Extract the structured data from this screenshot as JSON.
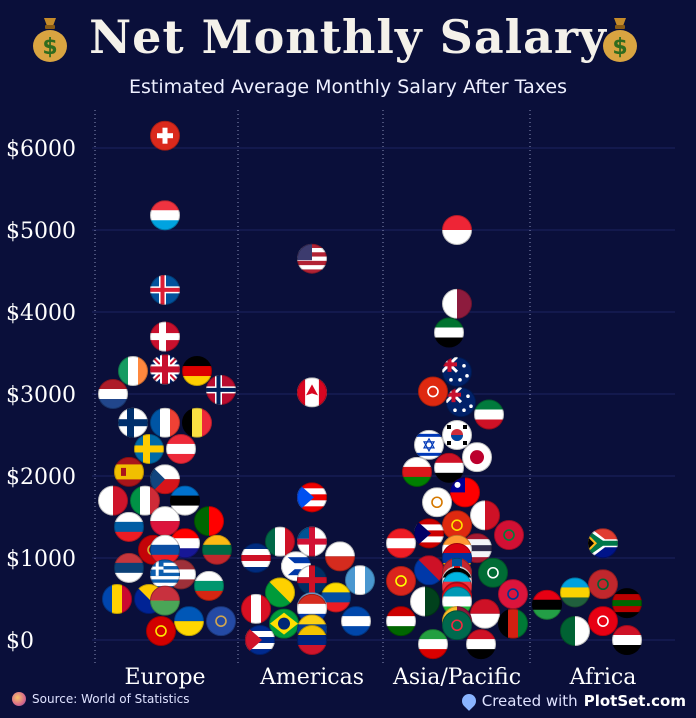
{
  "header": {
    "title": "Net Monthly Salary",
    "subtitle": "Estimated Average Monthly Salary After Taxes",
    "icon_left": "money-bag-icon",
    "icon_right": "money-bag-icon"
  },
  "footer": {
    "source": "Source: World of Statistics",
    "made_prefix": "Created with",
    "made_brand": "PlotSet.com"
  },
  "chart_data": {
    "type": "scatter",
    "title": "Net Monthly Salary",
    "subtitle": "Estimated Average Monthly Salary After Taxes",
    "categories": [
      "Europe",
      "Americas",
      "Asia/Pacific",
      "Africa"
    ],
    "yticks": [
      0,
      1000,
      2000,
      3000,
      4000,
      5000,
      6000
    ],
    "ytick_labels": [
      "$0",
      "$1000",
      "$2000",
      "$3000",
      "$4000",
      "$5000",
      "$6000"
    ],
    "ylim": [
      -200,
      6400
    ],
    "grid": true,
    "points": [
      {
        "group": "Europe",
        "country": "Switzerland",
        "value": 6150,
        "flag": "swiss"
      },
      {
        "group": "Europe",
        "country": "Luxembourg",
        "value": 5180,
        "flag": "h3:#ef3340,#ffffff,#00a3e0"
      },
      {
        "group": "Europe",
        "country": "Iceland",
        "value": 4270,
        "flag": "nordic:#02529c,#ffffff,#dc1e35"
      },
      {
        "group": "Europe",
        "country": "Denmark",
        "value": 3700,
        "flag": "nordic:#c8102e,#c8102e,#ffffff"
      },
      {
        "group": "Europe",
        "country": "Ireland",
        "value": 3280,
        "flag": "v3:#169b62,#ffffff,#ff883e"
      },
      {
        "group": "Europe",
        "country": "Germany",
        "value": 3280,
        "flag": "h3:#000000,#dd0000,#ffce00"
      },
      {
        "group": "Europe",
        "country": "Norway",
        "value": 3050,
        "flag": "nordic:#ba0c2f,#ffffff,#00205b"
      },
      {
        "group": "Europe",
        "country": "United Kingdom",
        "value": 3300,
        "flag": "uk"
      },
      {
        "group": "Europe",
        "country": "Netherlands",
        "value": 3000,
        "flag": "h3:#ae1c28,#ffffff,#21468b"
      },
      {
        "group": "Europe",
        "country": "France",
        "value": 2650,
        "flag": "v3:#0055a4,#ffffff,#ef4135"
      },
      {
        "group": "Europe",
        "country": "Finland",
        "value": 2650,
        "flag": "nordic:#ffffff,#ffffff,#002f6c"
      },
      {
        "group": "Europe",
        "country": "Belgium",
        "value": 2650,
        "flag": "v3:#000000,#fae042,#ed2939"
      },
      {
        "group": "Europe",
        "country": "Sweden",
        "value": 2330,
        "flag": "nordic:#006aa7,#006aa7,#fecc00"
      },
      {
        "group": "Europe",
        "country": "Austria",
        "value": 2330,
        "flag": "h3:#ed2939,#ffffff,#ed2939"
      },
      {
        "group": "Europe",
        "country": "Spain",
        "value": 2050,
        "flag": "spain"
      },
      {
        "group": "Europe",
        "country": "Czech Republic",
        "value": 1960,
        "flag": "czech"
      },
      {
        "group": "Europe",
        "country": "Italy",
        "value": 1700,
        "flag": "v3:#009246,#ffffff,#ce2b37"
      },
      {
        "group": "Europe",
        "country": "Estonia",
        "value": 1700,
        "flag": "h3:#0072ce,#000000,#ffffff"
      },
      {
        "group": "Europe",
        "country": "Malta",
        "value": 1700,
        "flag": "v2:#ffffff,#cf142b"
      },
      {
        "group": "Europe",
        "country": "Portugal",
        "value": 1450,
        "flag": "v2:#006600,#ff0000"
      },
      {
        "group": "Europe",
        "country": "Poland",
        "value": 1450,
        "flag": "h2:#ffffff,#dc143c"
      },
      {
        "group": "Europe",
        "country": "Slovenia",
        "value": 1380,
        "flag": "h3:#ffffff,#005da4,#ed1c24"
      },
      {
        "group": "Europe",
        "country": "Croatia",
        "value": 1180,
        "flag": "h3:#ff0000,#ffffff,#171796"
      },
      {
        "group": "Europe",
        "country": "Montenegro",
        "value": 1100,
        "flag": "solid:#c40308,#d4af37"
      },
      {
        "group": "Europe",
        "country": "Lithuania",
        "value": 1100,
        "flag": "h3:#fdb913,#006a44,#c1272d"
      },
      {
        "group": "Europe",
        "country": "Romania",
        "value": 1100,
        "flag": "v3:#002b7f,#fcd116,#ce1126"
      },
      {
        "group": "Europe",
        "country": "Slovakia",
        "value": 1100,
        "flag": "h3:#ffffff,#0b4ea2,#ee1c25"
      },
      {
        "group": "Europe",
        "country": "Serbia",
        "value": 880,
        "flag": "h3:#c6363c,#0c4076,#ffffff"
      },
      {
        "group": "Europe",
        "country": "Latvia",
        "value": 800,
        "flag": "h3:#9e3039,#ffffff,#9e3039"
      },
      {
        "group": "Europe",
        "country": "Albania",
        "value": 800,
        "flag": "solid:#e41e20,#000000"
      },
      {
        "group": "Europe",
        "country": "Greece",
        "value": 800,
        "flag": "greece"
      },
      {
        "group": "Europe",
        "country": "Bulgaria",
        "value": 660,
        "flag": "h3:#ffffff,#00966e,#d62612"
      },
      {
        "group": "Europe",
        "country": "Bosnia",
        "value": 500,
        "flag": "diag:#002395,#fecb00"
      },
      {
        "group": "Europe",
        "country": "Moldova",
        "value": 500,
        "flag": "v3:#0046ae,#ffd200,#cc092f"
      },
      {
        "group": "Europe",
        "country": "Belarus",
        "value": 480,
        "flag": "h2:#c8313e,#4aa657"
      },
      {
        "group": "Europe",
        "country": "Ukraine",
        "value": 230,
        "flag": "h2:#0057b7,#ffd700"
      },
      {
        "group": "Europe",
        "country": "Kosovo",
        "value": 230,
        "flag": "solid:#244aa5,#d0a650"
      },
      {
        "group": "Europe",
        "country": "North Macedonia",
        "value": 110,
        "flag": "solid:#d20000,#ffe600"
      },
      {
        "group": "Americas",
        "country": "United States",
        "value": 4650,
        "flag": "usa"
      },
      {
        "group": "Americas",
        "country": "Canada",
        "value": 3020,
        "flag": "canada"
      },
      {
        "group": "Americas",
        "country": "Puerto Rico",
        "value": 1740,
        "flag": "stripes:#ed0000,#ffffff,#0050f0"
      },
      {
        "group": "Americas",
        "country": "Panama",
        "value": 1200,
        "flag": "quad:#ffffff,#d21034,#005293"
      },
      {
        "group": "Americas",
        "country": "Mexico",
        "value": 1200,
        "flag": "v3:#006847,#ffffff,#ce1126"
      },
      {
        "group": "Americas",
        "country": "Chile",
        "value": 1020,
        "flag": "h2:#ffffff,#d52b1e"
      },
      {
        "group": "Americas",
        "country": "Costa Rica",
        "value": 1000,
        "flag": "h5:#002b7f,#ffffff,#ce1126"
      },
      {
        "group": "Americas",
        "country": "Uruguay",
        "value": 900,
        "flag": "stripes:#ffffff,#0038a8,#ffffff"
      },
      {
        "group": "Americas",
        "country": "Guatemala",
        "value": 730,
        "flag": "v3:#4997d0,#ffffff,#4997d0"
      },
      {
        "group": "Americas",
        "country": "Dominican Rep.",
        "value": 730,
        "flag": "quad:#002d62,#ce1126,#ffffff"
      },
      {
        "group": "Americas",
        "country": "Jamaica",
        "value": 580,
        "flag": "diag:#009b3a,#fed100"
      },
      {
        "group": "Americas",
        "country": "Ecuador",
        "value": 520,
        "flag": "h3:#ffdd00,#034ea2,#ed1c24"
      },
      {
        "group": "Americas",
        "country": "Argentina",
        "value": 400,
        "flag": "h3:#74acdf,#ffffff,#74acdf"
      },
      {
        "group": "Americas",
        "country": "Peru",
        "value": 380,
        "flag": "v3:#d91023,#ffffff,#d91023"
      },
      {
        "group": "Americas",
        "country": "Paraguay",
        "value": 380,
        "flag": "h3:#d52b1e,#ffffff,#0038a8"
      },
      {
        "group": "Americas",
        "country": "Brazil",
        "value": 200,
        "flag": "brazil"
      },
      {
        "group": "Americas",
        "country": "El Salvador",
        "value": 230,
        "flag": "h3:#0047ab,#ffffff,#0047ab"
      },
      {
        "group": "Americas",
        "country": "Bolivia",
        "value": 130,
        "flag": "h3:#d52b1e,#f9e300,#007934"
      },
      {
        "group": "Americas",
        "country": "Colombia",
        "value": 130,
        "flag": "h3:#fcd116,#003893,#ce1126"
      },
      {
        "group": "Americas",
        "country": "Cuba",
        "value": 0,
        "flag": "stripes:#002a8f,#ffffff,#cf142b"
      },
      {
        "group": "Americas",
        "country": "Venezuela",
        "value": 0,
        "flag": "h3:#f4c300,#00247d,#cf142b"
      },
      {
        "group": "Asia/Pacific",
        "country": "Singapore",
        "value": 5000,
        "flag": "h2:#ee2536,#ffffff"
      },
      {
        "group": "Asia/Pacific",
        "country": "Qatar",
        "value": 4100,
        "flag": "v2:#ffffff,#8d1b3d"
      },
      {
        "group": "Asia/Pacific",
        "country": "UAE",
        "value": 3750,
        "flag": "h3:#00732f,#ffffff,#000000"
      },
      {
        "group": "Asia/Pacific",
        "country": "Australia",
        "value": 3270,
        "flag": "aus"
      },
      {
        "group": "Asia/Pacific",
        "country": "Hong Kong",
        "value": 3030,
        "flag": "solid:#de2910,#ffffff"
      },
      {
        "group": "Asia/Pacific",
        "country": "New Zealand",
        "value": 2900,
        "flag": "aus"
      },
      {
        "group": "Asia/Pacific",
        "country": "Kuwait",
        "value": 2750,
        "flag": "h3:#007a3d,#ffffff,#ce1126"
      },
      {
        "group": "Asia/Pacific",
        "country": "Israel",
        "value": 2380,
        "flag": "israel"
      },
      {
        "group": "Asia/Pacific",
        "country": "South Korea",
        "value": 2500,
        "flag": "korea"
      },
      {
        "group": "Asia/Pacific",
        "country": "Japan",
        "value": 2230,
        "flag": "japan"
      },
      {
        "group": "Asia/Pacific",
        "country": "Iraq",
        "value": 2100,
        "flag": "h3:#ce1126,#ffffff,#000000"
      },
      {
        "group": "Asia/Pacific",
        "country": "Oman",
        "value": 2050,
        "flag": "h3:#ffffff,#db161b,#008000"
      },
      {
        "group": "Asia/Pacific",
        "country": "Cyprus",
        "value": 1680,
        "flag": "solid:#ffffff,#d57800"
      },
      {
        "group": "Asia/Pacific",
        "country": "Taiwan",
        "value": 1800,
        "flag": "taiwan"
      },
      {
        "group": "Asia/Pacific",
        "country": "Bahrain",
        "value": 1520,
        "flag": "v2:#ffffff,#ce1126"
      },
      {
        "group": "Asia/Pacific",
        "country": "Malaysia",
        "value": 1300,
        "flag": "stripes:#cc0001,#ffffff,#010066"
      },
      {
        "group": "Asia/Pacific",
        "country": "China",
        "value": 1400,
        "flag": "solid:#de2910,#ffde00"
      },
      {
        "group": "Asia/Pacific",
        "country": "Maldives",
        "value": 1280,
        "flag": "solid:#d21034,#007e3a"
      },
      {
        "group": "Asia/Pacific",
        "country": "Lebanon",
        "value": 1180,
        "flag": "h3:#ed1c24,#ffffff,#ed1c24"
      },
      {
        "group": "Asia/Pacific",
        "country": "Thailand",
        "value": 1120,
        "flag": "h5:#a51931,#f4f5f8,#2d2a4a"
      },
      {
        "group": "Asia/Pacific",
        "country": "India",
        "value": 1100,
        "flag": "h3:#ff9933,#ffffff,#138808"
      },
      {
        "group": "Asia/Pacific",
        "country": "Armenia",
        "value": 1000,
        "flag": "h3:#d90012,#0033a0,#f2a800"
      },
      {
        "group": "Asia/Pacific",
        "country": "Saudi Arabia",
        "value": 820,
        "flag": "solid:#006c35,#ffffff"
      },
      {
        "group": "Asia/Pacific",
        "country": "Philippines",
        "value": 850,
        "flag": "diag:#0038a8,#ce1126"
      },
      {
        "group": "Asia/Pacific",
        "country": "Kazakhstan",
        "value": 820,
        "flag": "solid:#00afca,#fec50c"
      },
      {
        "group": "Asia/Pacific",
        "country": "Mongolia",
        "value": 820,
        "flag": "v3:#c4272f,#015197,#c4272f"
      },
      {
        "group": "Asia/Pacific",
        "country": "Vietnam",
        "value": 720,
        "flag": "solid:#da251d,#ffff00"
      },
      {
        "group": "Asia/Pacific",
        "country": "Georgia",
        "value": 720,
        "flag": "quad:#ffffff,#ff0000,#ffffff"
      },
      {
        "group": "Asia/Pacific",
        "country": "Jordan",
        "value": 700,
        "flag": "h3:#000000,#ffffff,#007a3d"
      },
      {
        "group": "Asia/Pacific",
        "country": "Azerbaijan",
        "value": 650,
        "flag": "h3:#00b5e2,#ef3340,#509e2f"
      },
      {
        "group": "Asia/Pacific",
        "country": "Turkey",
        "value": 520,
        "flag": "solid:#e30a17,#ffffff"
      },
      {
        "group": "Asia/Pacific",
        "country": "Nepal",
        "value": 560,
        "flag": "solid:#dc143c,#003893"
      },
      {
        "group": "Asia/Pacific",
        "country": "Pakistan",
        "value": 470,
        "flag": "v2:#ffffff,#01411c"
      },
      {
        "group": "Asia/Pacific",
        "country": "Uzbekistan",
        "value": 470,
        "flag": "h3:#0099b5,#ffffff,#1eb53a"
      },
      {
        "group": "Asia/Pacific",
        "country": "Kyrgyzstan",
        "value": 530,
        "flag": "solid:#e8112d,#ffef00"
      },
      {
        "group": "Asia/Pacific",
        "country": "Indonesia",
        "value": 320,
        "flag": "h2:#ce1126,#ffffff"
      },
      {
        "group": "Asia/Pacific",
        "country": "Tajikistan",
        "value": 230,
        "flag": "h3:#cc0000,#ffffff,#006600"
      },
      {
        "group": "Asia/Pacific",
        "country": "Sri Lanka",
        "value": 230,
        "flag": "v2:#ffbe29,#8d153a"
      },
      {
        "group": "Asia/Pacific",
        "country": "Afghanistan",
        "value": 200,
        "flag": "v3:#000000,#d32011,#007a36"
      },
      {
        "group": "Asia/Pacific",
        "country": "Bangladesh",
        "value": 180,
        "flag": "solid:#006a4e,#f42a41"
      },
      {
        "group": "Asia/Pacific",
        "country": "Iran",
        "value": -50,
        "flag": "h3:#239f40,#ffffff,#da0000"
      },
      {
        "group": "Asia/Pacific",
        "country": "Syria",
        "value": -50,
        "flag": "h3:#ce1126,#ffffff,#000000"
      },
      {
        "group": "Africa",
        "country": "South Africa",
        "value": 1180,
        "flag": "sa"
      },
      {
        "group": "Africa",
        "country": "Morocco",
        "value": 680,
        "flag": "solid:#c1272d,#006233"
      },
      {
        "group": "Africa",
        "country": "Rwanda",
        "value": 580,
        "flag": "h3:#00a1de,#fad201,#20603d"
      },
      {
        "group": "Africa",
        "country": "Libya",
        "value": 430,
        "flag": "h3:#e70013,#000000,#239e46"
      },
      {
        "group": "Africa",
        "country": "Kenya",
        "value": 450,
        "flag": "h5:#000000,#bb0000,#006600"
      },
      {
        "group": "Africa",
        "country": "Tunisia",
        "value": 230,
        "flag": "solid:#e70013,#ffffff"
      },
      {
        "group": "Africa",
        "country": "Algeria",
        "value": 110,
        "flag": "v2:#006233,#ffffff"
      },
      {
        "group": "Africa",
        "country": "Egypt",
        "value": 0,
        "flag": "h3:#ce1126,#ffffff,#000000"
      }
    ]
  }
}
